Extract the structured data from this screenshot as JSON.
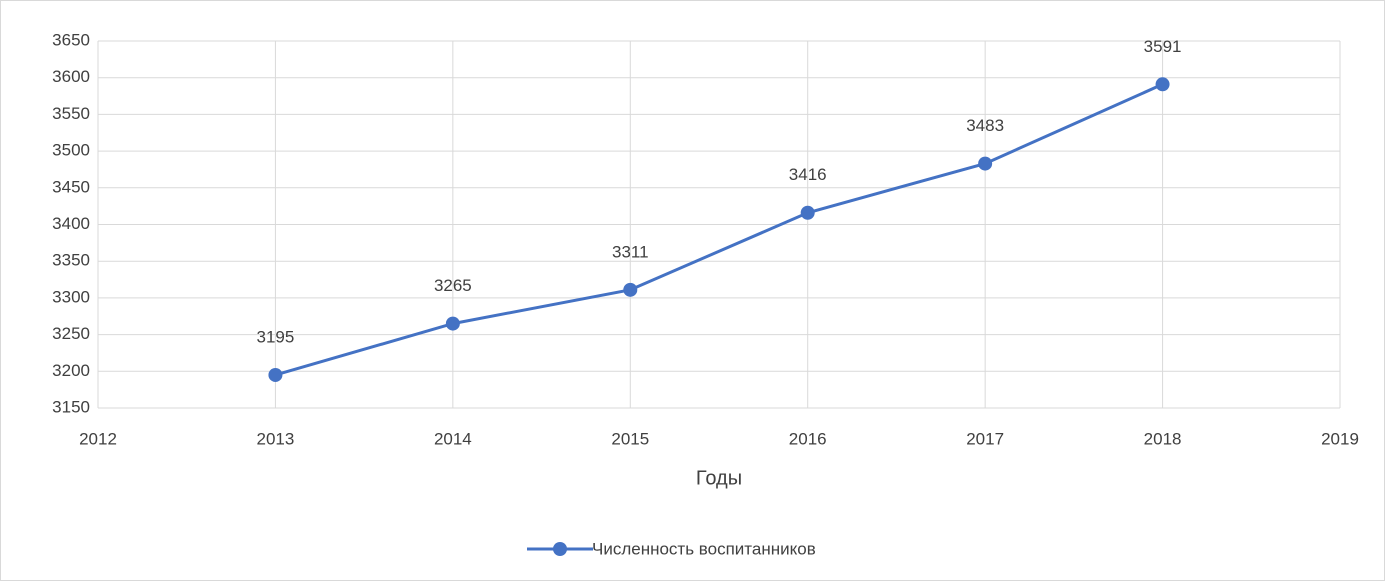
{
  "chart_data": {
    "type": "line",
    "x_label": "Годы",
    "x": [
      2013,
      2014,
      2015,
      2016,
      2017,
      2018
    ],
    "series": [
      {
        "name": "Численность воспитанников",
        "color": "#4472c4",
        "values": [
          3195,
          3265,
          3311,
          3416,
          3483,
          3591
        ]
      }
    ],
    "xlim": [
      2012,
      2019
    ],
    "xticks": [
      2012,
      2013,
      2014,
      2015,
      2016,
      2017,
      2018,
      2019
    ],
    "ylim": [
      3150,
      3650
    ],
    "yticks": [
      3150,
      3200,
      3250,
      3300,
      3350,
      3400,
      3450,
      3500,
      3550,
      3600,
      3650
    ],
    "grid": true,
    "legend": "bottom",
    "data_labels": true
  }
}
